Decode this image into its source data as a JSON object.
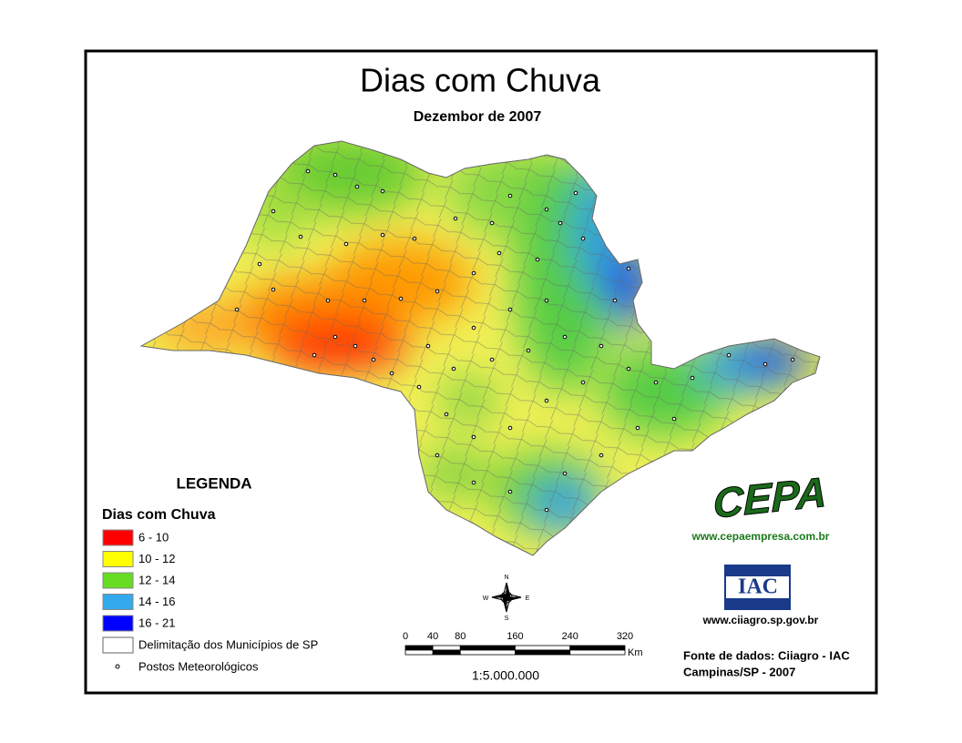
{
  "title": "Dias com Chuva",
  "subtitle": "Dezembor de 2007",
  "legend": {
    "heading": "LEGENDA",
    "title": "Dias com Chuva",
    "items": [
      {
        "label": "6 - 10",
        "color": "#ff0000"
      },
      {
        "label": "10 - 12",
        "color": "#ffff00"
      },
      {
        "label": "12 - 14",
        "color": "#66dd22"
      },
      {
        "label": "14 - 16",
        "color": "#33aaee"
      },
      {
        "label": "16 - 21",
        "color": "#0000ff"
      }
    ],
    "boundary": "Delimitação dos Municípios de SP",
    "stations": "Postos Meteorológicos"
  },
  "compass": {
    "n": "N",
    "s": "S",
    "e": "E",
    "w": "W"
  },
  "scale": {
    "ticks": [
      0,
      40,
      80,
      160,
      240,
      320
    ],
    "unit": "Km",
    "ratio": "1:5.000.000"
  },
  "logos": {
    "cepa": "CEPA",
    "cepa_url": "www.cepaempresa.com.br",
    "iac": "IAC",
    "iac_url": "www.ciiagro.sp.gov.br"
  },
  "source": [
    "Fonte de dados: Ciiagro - IAC",
    "Campinas/SP - 2007"
  ]
}
